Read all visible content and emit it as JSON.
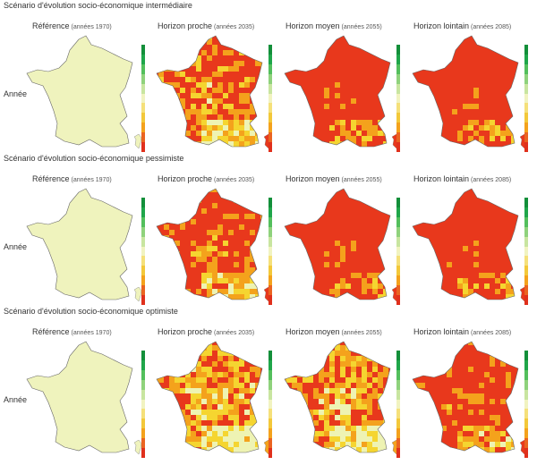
{
  "rows": [
    {
      "scenario": "Scénario d'évolution socio-économique intermédiaire",
      "row_label": "Année",
      "panels": [
        {
          "title": "Référence",
          "subtitle": "(années 1970)",
          "level": 0
        },
        {
          "title": "Horizon proche",
          "subtitle": "(années 2035)",
          "level": 0.55
        },
        {
          "title": "Horizon moyen",
          "subtitle": "(années 2055)",
          "level": 0.85
        },
        {
          "title": "Horizon lointain",
          "subtitle": "(années 2085)",
          "level": 0.95
        }
      ]
    },
    {
      "scenario": "Scénario d'évolution socio-économique pessimiste",
      "row_label": "Année",
      "panels": [
        {
          "title": "Référence",
          "subtitle": "(années 1970)",
          "level": 0
        },
        {
          "title": "Horizon proche",
          "subtitle": "(années 2035)",
          "level": 0.6
        },
        {
          "title": "Horizon moyen",
          "subtitle": "(années 2055)",
          "level": 0.88
        },
        {
          "title": "Horizon lointain",
          "subtitle": "(années 2085)",
          "level": 0.96
        }
      ]
    },
    {
      "scenario": "Scénario d'évolution socio-économique optimiste",
      "row_label": "Année",
      "panels": [
        {
          "title": "Référence",
          "subtitle": "(années 1970)",
          "level": 0
        },
        {
          "title": "Horizon proche",
          "subtitle": "(années 2035)",
          "level": 0.38
        },
        {
          "title": "Horizon moyen",
          "subtitle": "(années 2055)",
          "level": 0.4
        },
        {
          "title": "Horizon lointain",
          "subtitle": "(années 2085)",
          "level": 0.75
        }
      ]
    }
  ],
  "colors": {
    "reference": "#eff3bd",
    "light": "#eef3b3",
    "yellow": "#f5d530",
    "orange": "#f4a21c",
    "red": "#e8381c",
    "legend": [
      "#138f3a",
      "#1fa64a",
      "#53bf5c",
      "#8fd27c",
      "#c8e5a0",
      "#f1f3c0",
      "#f5e07a",
      "#f3c83a",
      "#f4a21c",
      "#ea6421",
      "#e0301c"
    ]
  }
}
